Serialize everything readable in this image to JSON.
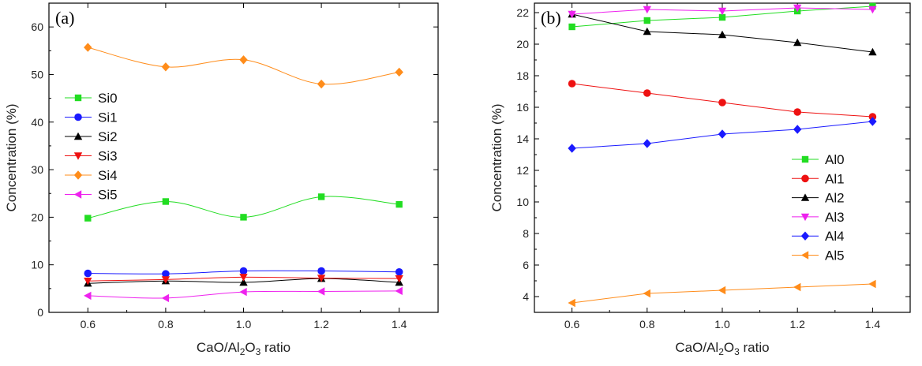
{
  "chart_data": [
    {
      "type": "scatter",
      "panel_label": "(a)",
      "xlabel": {
        "pre": "CaO/Al",
        "sub1": "2",
        "mid": "O",
        "sub2": "3",
        "post": " ratio"
      },
      "ylabel": "Concentration (%)",
      "xlim": [
        0.5,
        1.5
      ],
      "ylim": [
        0,
        65
      ],
      "xticks": [
        0.6,
        0.8,
        1.0,
        1.2,
        1.4
      ],
      "xticklabels": [
        "0.6",
        "0.8",
        "1.0",
        "1.2",
        "1.4"
      ],
      "yticks": [
        0,
        10,
        20,
        30,
        40,
        50,
        60
      ],
      "yticklabels": [
        "0",
        "10",
        "20",
        "30",
        "40",
        "50",
        "60"
      ],
      "legend_position": "center-left",
      "x": [
        0.6,
        0.8,
        1.0,
        1.2,
        1.4
      ],
      "series": [
        {
          "name": "Si0",
          "color": "#22dd22",
          "marker": "square",
          "values": [
            19.8,
            23.3,
            20.0,
            24.3,
            22.7
          ]
        },
        {
          "name": "Si1",
          "color": "#1a1aff",
          "marker": "circle",
          "values": [
            8.2,
            8.1,
            8.7,
            8.7,
            8.5
          ]
        },
        {
          "name": "Si2",
          "color": "#000000",
          "marker": "triangle-up",
          "values": [
            6.1,
            6.6,
            6.3,
            7.1,
            6.3
          ]
        },
        {
          "name": "Si3",
          "color": "#ee1111",
          "marker": "triangle-down",
          "values": [
            6.6,
            6.9,
            7.4,
            7.2,
            7.1
          ]
        },
        {
          "name": "Si4",
          "color": "#ff8c1a",
          "marker": "diamond",
          "values": [
            55.7,
            51.6,
            53.1,
            48.0,
            50.5
          ]
        },
        {
          "name": "Si5",
          "color": "#ee22ee",
          "marker": "triangle-left",
          "values": [
            3.5,
            3.0,
            4.3,
            4.4,
            4.5
          ]
        }
      ]
    },
    {
      "type": "line",
      "panel_label": "(b)",
      "xlabel": {
        "pre": "CaO/Al",
        "sub1": "2",
        "mid": "O",
        "sub2": "3",
        "post": " ratio"
      },
      "ylabel": "Concentration (%)",
      "xlim": [
        0.5,
        1.5
      ],
      "ylim": [
        3,
        22.6
      ],
      "xticks": [
        0.6,
        0.8,
        1.0,
        1.2,
        1.4
      ],
      "xticklabels": [
        "0.6",
        "0.8",
        "1.0",
        "1.2",
        "1.4"
      ],
      "yticks": [
        4,
        6,
        8,
        10,
        12,
        14,
        16,
        18,
        20,
        22
      ],
      "yticklabels": [
        "4",
        "6",
        "8",
        "10",
        "12",
        "14",
        "16",
        "18",
        "20",
        "22"
      ],
      "legend_position": "right",
      "x": [
        0.6,
        0.8,
        1.0,
        1.2,
        1.4
      ],
      "series": [
        {
          "name": "Al0",
          "color": "#22dd22",
          "marker": "square",
          "values": [
            21.1,
            21.5,
            21.7,
            22.1,
            22.4
          ]
        },
        {
          "name": "Al1",
          "color": "#ee1111",
          "marker": "circle",
          "values": [
            17.5,
            16.9,
            16.3,
            15.7,
            15.4
          ]
        },
        {
          "name": "Al2",
          "color": "#000000",
          "marker": "triangle-up",
          "values": [
            21.9,
            20.8,
            20.6,
            20.1,
            19.5
          ]
        },
        {
          "name": "Al3",
          "color": "#ee22ee",
          "marker": "triangle-down",
          "values": [
            21.9,
            22.2,
            22.1,
            22.3,
            22.2
          ]
        },
        {
          "name": "Al4",
          "color": "#1a1aff",
          "marker": "diamond",
          "values": [
            13.4,
            13.7,
            14.3,
            14.6,
            15.1
          ]
        },
        {
          "name": "Al5",
          "color": "#ff8c1a",
          "marker": "triangle-left",
          "values": [
            3.6,
            4.2,
            4.4,
            4.6,
            4.8
          ]
        }
      ]
    }
  ]
}
